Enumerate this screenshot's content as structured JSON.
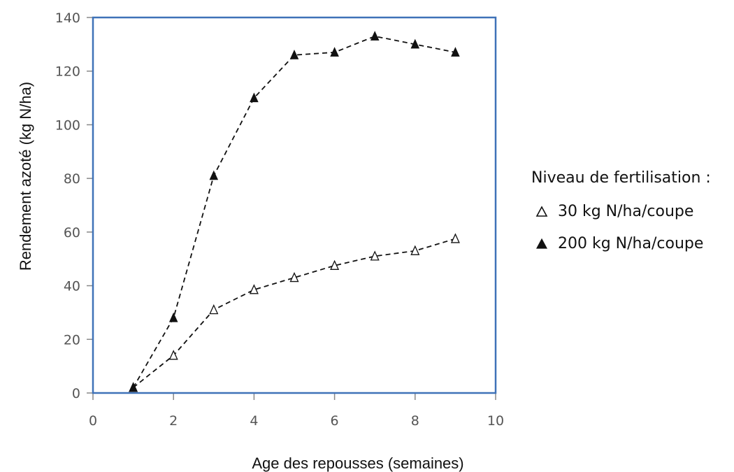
{
  "chart_data": {
    "type": "line",
    "xlabel": "Age des repousses (semaines)",
    "ylabel": "Rendement azoté (kg N/ha)",
    "xlim": [
      0,
      10
    ],
    "ylim": [
      0,
      140
    ],
    "xticks": [
      0,
      2,
      4,
      6,
      8,
      10
    ],
    "yticks": [
      0,
      20,
      40,
      60,
      80,
      100,
      120,
      140
    ],
    "grid": false,
    "legend_position": "right",
    "legend": {
      "title": "Niveau de fertilisation :",
      "items": [
        "30 kg N/ha/coupe",
        "200 kg N/ha/coupe"
      ]
    },
    "series": [
      {
        "name": "30 kg N/ha/coupe",
        "marker": "open-triangle",
        "line_style": "dashed",
        "x": [
          1,
          2,
          3,
          4,
          5,
          6,
          7,
          8,
          9
        ],
        "y": [
          2,
          14,
          31,
          38.5,
          43,
          47.5,
          51,
          53,
          57.5
        ]
      },
      {
        "name": "200 kg N/ha/coupe",
        "marker": "filled-triangle",
        "line_style": "dashed",
        "x": [
          1,
          2,
          3,
          4,
          5,
          6,
          7,
          8,
          9
        ],
        "y": [
          2,
          28,
          81,
          110,
          126,
          127,
          133,
          130,
          127
        ]
      }
    ],
    "colors": {
      "frame": "#3f72b8",
      "series": "#111111",
      "ticks": "#888888"
    }
  }
}
